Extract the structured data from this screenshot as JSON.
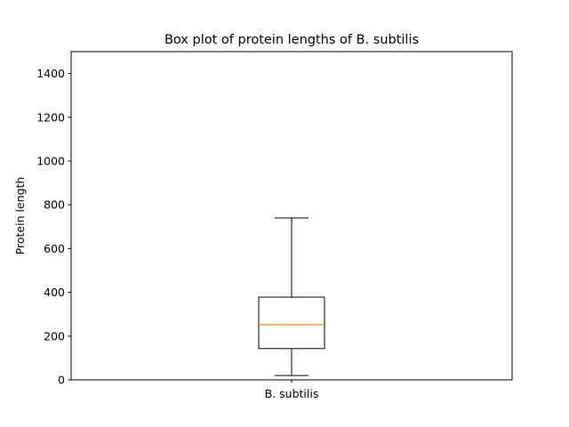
{
  "chart_data": {
    "type": "box",
    "title": "Box plot of protein lengths of B. subtilis",
    "xlabel": "",
    "ylabel": "Protein length",
    "categories": [
      "B. subtilis"
    ],
    "ylim": [
      0,
      1500
    ],
    "yticks": [
      0,
      200,
      400,
      600,
      800,
      1000,
      1200,
      1400
    ],
    "grid": false,
    "boxes": [
      {
        "category": "B. subtilis",
        "whisker_low": 20,
        "q1": 143,
        "median": 252,
        "q3": 378,
        "whisker_high": 740
      }
    ],
    "colors": {
      "box": "#000000",
      "median": "#ff7f0e"
    }
  }
}
